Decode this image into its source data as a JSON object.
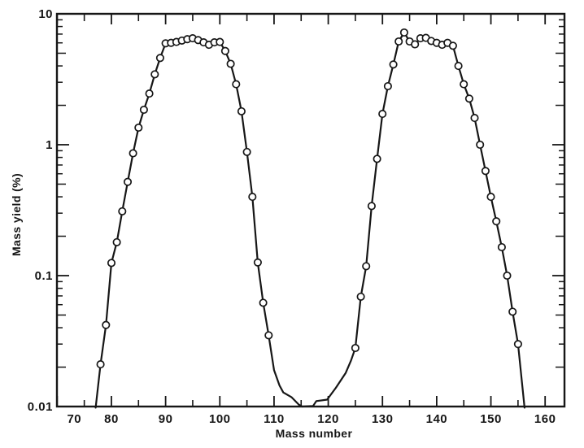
{
  "figure": {
    "background_color": "#ffffff",
    "ink_color": "#161616"
  },
  "chart_data": {
    "type": "line",
    "title": "",
    "xlabel": "Mass number",
    "ylabel": "Mass yield (%)",
    "legend": "none",
    "grid": false,
    "marker_style": "open-circle",
    "line_color": "#161616",
    "x_axis": {
      "scale": "linear",
      "min": 70,
      "max": 163.5,
      "major_ticks": [
        70,
        80,
        90,
        100,
        110,
        120,
        130,
        140,
        150,
        160
      ],
      "tick_labels": [
        "70",
        "80",
        "90",
        "100",
        "110",
        "120",
        "130",
        "140",
        "150",
        "160"
      ],
      "minor_ticks": [
        75,
        85,
        95,
        105,
        115,
        125,
        135,
        145,
        155
      ]
    },
    "y_axis": {
      "scale": "log",
      "min": 0.01,
      "max": 10,
      "major_ticks": [
        0.01,
        0.1,
        1,
        10
      ],
      "tick_labels": [
        "0.01",
        "0.1",
        "1",
        "10"
      ],
      "minor_tick_mantissas": [
        2,
        3,
        4,
        5,
        6,
        7,
        8,
        9
      ]
    },
    "series_name": "mass-yield-curve",
    "points_format": [
      "mass_number",
      "yield_percent",
      "has_circle_marker"
    ],
    "points": [
      [
        77.1,
        0.0098,
        0
      ],
      [
        78,
        0.021,
        1
      ],
      [
        79,
        0.042,
        1
      ],
      [
        80,
        0.125,
        1
      ],
      [
        81,
        0.18,
        1
      ],
      [
        82,
        0.31,
        1
      ],
      [
        83,
        0.52,
        1
      ],
      [
        84,
        0.86,
        1
      ],
      [
        85,
        1.35,
        1
      ],
      [
        86,
        1.85,
        1
      ],
      [
        87,
        2.46,
        1
      ],
      [
        88,
        3.45,
        1
      ],
      [
        89,
        4.6,
        1
      ],
      [
        90,
        5.95,
        1
      ],
      [
        91,
        6.0,
        1
      ],
      [
        92,
        6.1,
        1
      ],
      [
        93,
        6.25,
        1
      ],
      [
        94,
        6.4,
        1
      ],
      [
        95,
        6.5,
        1
      ],
      [
        96,
        6.3,
        1
      ],
      [
        97,
        6.05,
        1
      ],
      [
        98,
        5.8,
        1
      ],
      [
        99,
        6.05,
        1
      ],
      [
        100,
        6.1,
        1
      ],
      [
        101,
        5.2,
        1
      ],
      [
        102,
        4.15,
        1
      ],
      [
        103,
        2.9,
        1
      ],
      [
        104,
        1.8,
        1
      ],
      [
        105,
        0.88,
        1
      ],
      [
        106,
        0.4,
        1
      ],
      [
        107,
        0.126,
        1
      ],
      [
        108,
        0.062,
        1
      ],
      [
        109,
        0.035,
        1
      ],
      [
        110,
        0.019,
        0
      ],
      [
        111,
        0.0145,
        0
      ],
      [
        111.7,
        0.0128,
        0
      ],
      [
        113.2,
        0.0118,
        0
      ],
      [
        114.6,
        0.0103,
        0
      ],
      [
        115.2,
        0.01,
        0
      ],
      [
        117.2,
        0.0101,
        0
      ],
      [
        117.8,
        0.011,
        0
      ],
      [
        119.8,
        0.0113,
        0
      ],
      [
        121.4,
        0.0139,
        0
      ],
      [
        123.2,
        0.018,
        0
      ],
      [
        124.2,
        0.0225,
        0
      ],
      [
        125,
        0.028,
        1
      ],
      [
        126,
        0.069,
        1
      ],
      [
        127,
        0.118,
        1
      ],
      [
        128,
        0.34,
        1
      ],
      [
        129,
        0.78,
        1
      ],
      [
        130,
        1.72,
        1
      ],
      [
        131,
        2.8,
        1
      ],
      [
        132,
        4.1,
        1
      ],
      [
        133,
        6.15,
        1
      ],
      [
        134,
        7.2,
        1
      ],
      [
        135,
        6.15,
        1
      ],
      [
        136,
        5.85,
        1
      ],
      [
        137,
        6.5,
        1
      ],
      [
        138,
        6.55,
        1
      ],
      [
        139,
        6.2,
        1
      ],
      [
        140,
        6.0,
        1
      ],
      [
        141,
        5.8,
        1
      ],
      [
        142,
        6.0,
        1
      ],
      [
        143,
        5.7,
        1
      ],
      [
        144,
        4.0,
        1
      ],
      [
        145,
        2.9,
        1
      ],
      [
        146,
        2.25,
        1
      ],
      [
        147,
        1.6,
        1
      ],
      [
        148,
        1.0,
        1
      ],
      [
        149,
        0.63,
        1
      ],
      [
        150,
        0.4,
        1
      ],
      [
        151,
        0.26,
        1
      ],
      [
        152,
        0.165,
        1
      ],
      [
        153,
        0.1,
        1
      ],
      [
        154,
        0.053,
        1
      ],
      [
        155,
        0.03,
        1
      ],
      [
        156.2,
        0.0098,
        0
      ]
    ]
  }
}
